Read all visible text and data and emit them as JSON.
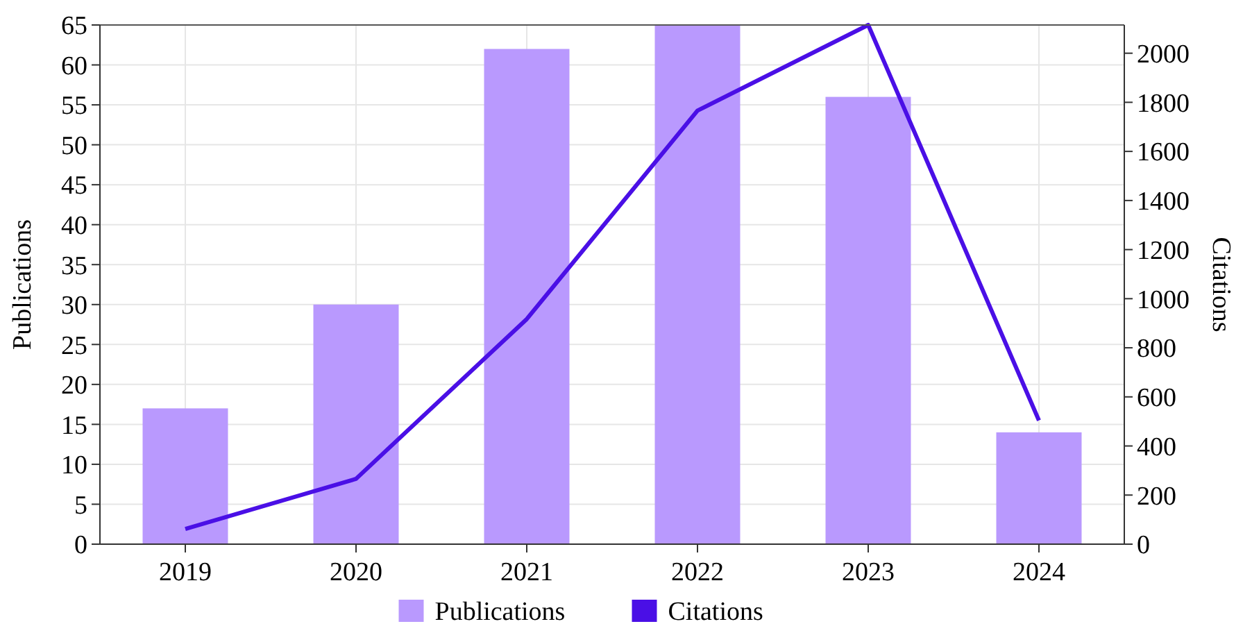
{
  "chart_data": {
    "type": "bar",
    "categories": [
      "2019",
      "2020",
      "2021",
      "2022",
      "2023",
      "2024"
    ],
    "series": [
      {
        "name": "Publications",
        "color": "#b999fe",
        "values": [
          17,
          30,
          62,
          65,
          56,
          14
        ]
      },
      {
        "name": "Citations",
        "type": "line",
        "axis": "y2",
        "color": "#4a0fe6",
        "values": [
          62,
          266,
          917,
          1766,
          2115,
          504
        ]
      }
    ],
    "ylabel": "Publications",
    "y2label": "Citations",
    "ylim": [
      0,
      65
    ],
    "yticks": [
      0,
      5,
      10,
      15,
      20,
      25,
      30,
      35,
      40,
      45,
      50,
      55,
      60,
      65
    ],
    "y2lim": [
      0,
      2115
    ],
    "y2ticks": [
      0,
      200,
      400,
      600,
      800,
      1000,
      1200,
      1400,
      1600,
      1800,
      2000
    ],
    "grid": true,
    "legend": "bottom",
    "marker": "none",
    "line_style": "solid"
  }
}
